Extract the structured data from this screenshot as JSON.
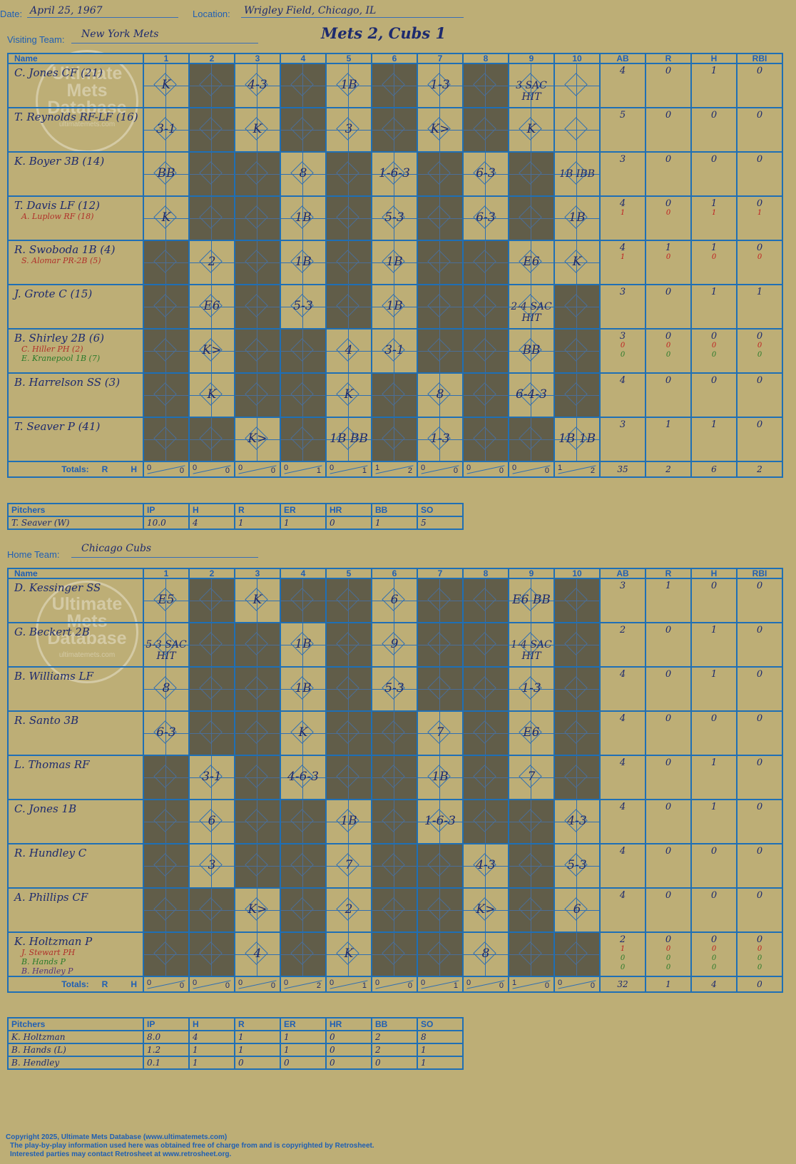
{
  "header": {
    "date_label": "Date:",
    "date": "April 25, 1967",
    "location_label": "Location:",
    "location": "Wrigley Field, Chicago, IL",
    "visiting_label": "Visiting Team:",
    "visiting_team": "New York Mets",
    "home_label": "Home Team:",
    "home_team": "Chicago Cubs",
    "title": "Mets 2, Cubs 1"
  },
  "columns": {
    "name": "Name",
    "innings": [
      "1",
      "2",
      "3",
      "4",
      "5",
      "6",
      "7",
      "8",
      "9",
      "10"
    ],
    "stats": [
      "AB",
      "R",
      "H",
      "RBI"
    ]
  },
  "watermark": {
    "line1": "Ultimate",
    "line2": "Mets",
    "line3": "Database",
    "url": "ultimatemets.com"
  },
  "totals_label": "Totals:",
  "totals_r": "R",
  "totals_h": "H",
  "visitor": {
    "players": [
      {
        "name": "C. Jones CF (21)",
        "subs": [],
        "stats": [
          "4",
          "0",
          "1",
          "0"
        ]
      },
      {
        "name": "T. Reynolds RF-LF (16)",
        "subs": [],
        "stats": [
          "5",
          "0",
          "0",
          "0"
        ]
      },
      {
        "name": "K. Boyer 3B (14)",
        "subs": [],
        "stats": [
          "3",
          "0",
          "0",
          "0"
        ]
      },
      {
        "name": "T. Davis LF (12)",
        "subs": [
          {
            "name": "A. Luplow RF (18)",
            "stats": [
              "1",
              "0",
              "1",
              "1"
            ]
          }
        ],
        "stats": [
          "4",
          "0",
          "1",
          "0"
        ]
      },
      {
        "name": "R. Swoboda 1B (4)",
        "subs": [
          {
            "name": "S. Alomar PR-2B (5)",
            "stats": [
              "1",
              "0",
              "0",
              "0"
            ]
          }
        ],
        "stats": [
          "4",
          "1",
          "1",
          "0"
        ]
      },
      {
        "name": "J. Grote C (15)",
        "subs": [],
        "stats": [
          "3",
          "0",
          "1",
          "1"
        ]
      },
      {
        "name": "B. Shirley 2B (6)",
        "subs": [
          {
            "name": "C. Hiller PH (2)",
            "stats": [
              "0",
              "0",
              "0",
              "0"
            ]
          },
          {
            "name": "E. Kranepool 1B (7)",
            "stats": [
              "0",
              "0",
              "0",
              "0"
            ]
          }
        ],
        "stats": [
          "3",
          "0",
          "0",
          "0"
        ]
      },
      {
        "name": "B. Harrelson SS (3)",
        "subs": [],
        "stats": [
          "4",
          "0",
          "0",
          "0"
        ]
      },
      {
        "name": "T. Seaver P (41)",
        "subs": [],
        "stats": [
          "3",
          "1",
          "1",
          "0"
        ]
      }
    ],
    "innings_rh": [
      [
        "0",
        "0"
      ],
      [
        "0",
        "0"
      ],
      [
        "0",
        "0"
      ],
      [
        "0",
        "1"
      ],
      [
        "0",
        "1"
      ],
      [
        "1",
        "2"
      ],
      [
        "0",
        "0"
      ],
      [
        "0",
        "0"
      ],
      [
        "0",
        "0"
      ],
      [
        "1",
        "2"
      ]
    ],
    "totals": [
      "35",
      "2",
      "6",
      "2"
    ],
    "pitchers": [
      {
        "name": "T. Seaver (W)",
        "ip": "10.0",
        "h": "4",
        "r": "1",
        "er": "1",
        "hr": "0",
        "bb": "1",
        "so": "5"
      }
    ]
  },
  "home": {
    "players": [
      {
        "name": "D. Kessinger SS",
        "subs": [],
        "stats": [
          "3",
          "1",
          "0",
          "0"
        ]
      },
      {
        "name": "G. Beckert 2B",
        "subs": [],
        "stats": [
          "2",
          "0",
          "1",
          "0"
        ]
      },
      {
        "name": "B. Williams LF",
        "subs": [],
        "stats": [
          "4",
          "0",
          "1",
          "0"
        ]
      },
      {
        "name": "R. Santo 3B",
        "subs": [],
        "stats": [
          "4",
          "0",
          "0",
          "0"
        ]
      },
      {
        "name": "L. Thomas RF",
        "subs": [],
        "stats": [
          "4",
          "0",
          "1",
          "0"
        ]
      },
      {
        "name": "C. Jones 1B",
        "subs": [],
        "stats": [
          "4",
          "0",
          "1",
          "0"
        ]
      },
      {
        "name": "R. Hundley C",
        "subs": [],
        "stats": [
          "4",
          "0",
          "0",
          "0"
        ]
      },
      {
        "name": "A. Phillips CF",
        "subs": [],
        "stats": [
          "4",
          "0",
          "0",
          "0"
        ]
      },
      {
        "name": "K. Holtzman P",
        "subs": [
          {
            "name": "J. Stewart PH",
            "stats": [
              "1",
              "0",
              "0",
              "0"
            ]
          },
          {
            "name": "B. Hands P",
            "stats": [
              "0",
              "0",
              "0",
              "0"
            ]
          },
          {
            "name": "B. Hendley P",
            "stats": [
              "0",
              "0",
              "0",
              "0"
            ]
          }
        ],
        "stats": [
          "2",
          "0",
          "0",
          "0"
        ]
      }
    ],
    "innings_rh": [
      [
        "0",
        "0"
      ],
      [
        "0",
        "0"
      ],
      [
        "0",
        "0"
      ],
      [
        "0",
        "2"
      ],
      [
        "0",
        "1"
      ],
      [
        "0",
        "0"
      ],
      [
        "0",
        "1"
      ],
      [
        "0",
        "0"
      ],
      [
        "1",
        "0"
      ],
      [
        "0",
        "0"
      ]
    ],
    "totals": [
      "32",
      "1",
      "4",
      "0"
    ],
    "pitchers": [
      {
        "name": "K. Holtzman",
        "ip": "8.0",
        "h": "4",
        "r": "1",
        "er": "1",
        "hr": "0",
        "bb": "2",
        "so": "8"
      },
      {
        "name": "B. Hands (L)",
        "ip": "1.2",
        "h": "1",
        "r": "1",
        "er": "1",
        "hr": "0",
        "bb": "2",
        "so": "1"
      },
      {
        "name": "B. Hendley",
        "ip": "0.1",
        "h": "1",
        "r": "0",
        "er": "0",
        "hr": "0",
        "bb": "0",
        "so": "1"
      }
    ]
  },
  "pitch_headers": [
    "Pitchers",
    "IP",
    "H",
    "R",
    "ER",
    "HR",
    "BB",
    "SO"
  ],
  "grid_visitor": [
    [
      "l",
      "K",
      "d",
      "",
      "l",
      "4-3",
      "d",
      "",
      "l",
      "1B",
      "d",
      "",
      "l",
      "1-3",
      "d",
      "",
      "l",
      "3 SAC HIT"
    ],
    [
      "l",
      "3-1",
      "d",
      "",
      "l",
      "K",
      "d",
      "",
      "l",
      "3",
      "d",
      "",
      "l",
      "K>",
      "d",
      "",
      "l",
      "K"
    ],
    [
      "l",
      "BB",
      "d",
      "",
      "d",
      "",
      "l",
      "8",
      "d",
      "",
      "l",
      "1-6-3",
      "d",
      "",
      "l",
      "6-3",
      "d",
      "",
      "l",
      "1B IBB"
    ],
    [
      "l",
      "K",
      "d",
      "",
      "d",
      "",
      "l",
      "1B",
      "d",
      "",
      "l",
      "5-3",
      "d",
      "",
      "l",
      "6-3",
      "d",
      "",
      "l",
      "1B"
    ],
    [
      "d",
      "",
      "l",
      "2",
      "d",
      "",
      "l",
      "1B",
      "d",
      "",
      "l",
      "1B",
      "d",
      "",
      "d",
      "",
      "l",
      "E6",
      "l",
      "K"
    ],
    [
      "d",
      "",
      "l",
      "E6",
      "d",
      "",
      "l",
      "5-3",
      "d",
      "",
      "l",
      "1B",
      "d",
      "",
      "d",
      "",
      "l",
      "2-4 SAC HIT",
      "d",
      ""
    ],
    [
      "d",
      "",
      "l",
      "K>",
      "d",
      "",
      "d",
      "",
      "l",
      "4",
      "l",
      "3-1",
      "d",
      "",
      "d",
      "",
      "l",
      "BB",
      "d",
      ""
    ],
    [
      "d",
      "",
      "l",
      "K",
      "d",
      "",
      "d",
      "",
      "l",
      "K",
      "d",
      "",
      "l",
      "8",
      "d",
      "",
      "l",
      "6-4-3",
      "d",
      ""
    ],
    [
      "d",
      "",
      "d",
      "",
      "l",
      "K>",
      "d",
      "",
      "l",
      "1B BB",
      "d",
      "",
      "l",
      "1-3",
      "d",
      "",
      "d",
      "",
      "l",
      "1B 1B"
    ]
  ],
  "grid_home": [
    [
      "l",
      "E5",
      "d",
      "",
      "l",
      "K",
      "d",
      "",
      "d",
      "",
      "l",
      "6",
      "d",
      "",
      "d",
      "",
      "l",
      "E6 BB",
      "d",
      ""
    ],
    [
      "l",
      "5-3 SAC HIT",
      "d",
      "",
      "d",
      "",
      "l",
      "1B",
      "d",
      "",
      "l",
      "9",
      "d",
      "",
      "d",
      "",
      "l",
      "1-4 SAC HIT",
      "d",
      ""
    ],
    [
      "l",
      "8",
      "d",
      "",
      "d",
      "",
      "l",
      "1B",
      "d",
      "",
      "l",
      "5-3",
      "d",
      "",
      "d",
      "",
      "l",
      "1-3",
      "d",
      ""
    ],
    [
      "l",
      "6-3",
      "d",
      "",
      "d",
      "",
      "l",
      "K",
      "d",
      "",
      "d",
      "",
      "l",
      "7",
      "d",
      "",
      "l",
      "E6",
      "d",
      ""
    ],
    [
      "d",
      "",
      "l",
      "3-1",
      "d",
      "",
      "l",
      "4-6-3",
      "d",
      "",
      "d",
      "",
      "l",
      "1B",
      "d",
      "",
      "l",
      "7",
      "d",
      ""
    ],
    [
      "d",
      "",
      "l",
      "6",
      "d",
      "",
      "d",
      "",
      "l",
      "1B",
      "d",
      "",
      "l",
      "1-6-3",
      "d",
      "",
      "d",
      "",
      "l",
      "4-3"
    ],
    [
      "d",
      "",
      "l",
      "3",
      "d",
      "",
      "d",
      "",
      "l",
      "7",
      "d",
      "",
      "d",
      "",
      "l",
      "4-3",
      "d",
      "",
      "l",
      "5-3"
    ],
    [
      "d",
      "",
      "d",
      "",
      "l",
      "K>",
      "d",
      "",
      "l",
      "2",
      "d",
      "",
      "d",
      "",
      "l",
      "K>",
      "d",
      "",
      "l",
      "6"
    ],
    [
      "d",
      "",
      "d",
      "",
      "l",
      "4",
      "d",
      "",
      "l",
      "K",
      "d",
      "",
      "d",
      "",
      "l",
      "8",
      "d",
      "",
      "d",
      ""
    ]
  ],
  "footer": {
    "line1": "Copyright 2025, Ultimate Mets Database (www.ultimatemets.com)",
    "line2": "The play-by-play information used here was obtained free of charge from and is copyrighted by Retrosheet.",
    "line3": "Interested parties may contact Retrosheet at www.retrosheet.org."
  }
}
